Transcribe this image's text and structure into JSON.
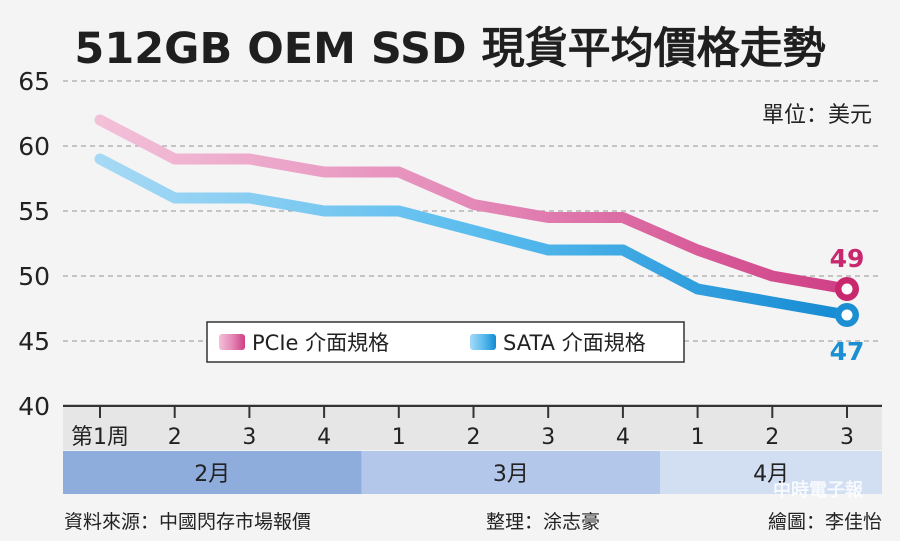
{
  "chart_data": {
    "type": "line",
    "title": "512GB OEM SSD 現貨平均價格走勢",
    "unit_label": "單位：美元",
    "ylim": [
      40,
      65
    ],
    "yticks": [
      40,
      45,
      50,
      55,
      60,
      65
    ],
    "grid": true,
    "legend_position": "middle",
    "x_tick_labels": [
      "第1周",
      "2",
      "3",
      "4",
      "1",
      "2",
      "3",
      "4",
      "1",
      "2",
      "3"
    ],
    "months": [
      {
        "label": "2月",
        "span": 4,
        "color": "#8eacdc"
      },
      {
        "label": "3月",
        "span": 4,
        "color": "#b3c7ea"
      },
      {
        "label": "4月",
        "span": 3,
        "color": "#d2dff3"
      }
    ],
    "series": [
      {
        "name": "PCIe 介面規格",
        "values": [
          62,
          59,
          59,
          58,
          58,
          55.5,
          54.5,
          54.5,
          52,
          50,
          49
        ],
        "color": "#e07bb0",
        "end_label": "49",
        "end_label_color": "#c8286d"
      },
      {
        "name": "SATA 介面規格",
        "values": [
          59,
          56,
          56,
          55,
          55,
          53.5,
          52,
          52,
          49,
          48,
          47
        ],
        "color": "#4cb2e8",
        "end_label": "47",
        "end_label_color": "#1b8fd2"
      }
    ],
    "source": "資料來源：中國閃存市場報價",
    "editor": "整理：涂志豪",
    "illustrator": "繪圖：李佳怡",
    "watermark": "中時電子報"
  }
}
